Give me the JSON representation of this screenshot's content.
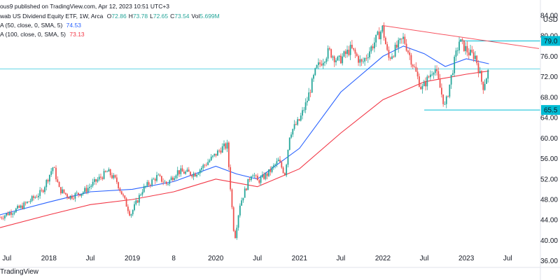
{
  "header": {
    "published": "ous9 published on TradingView.com, Apr 12, 2023 10:51 UTC+3",
    "symbol_line": "wab US Dividend Equity ETF, 1W, Arca",
    "ohlc": [
      {
        "k": "O",
        "v": "72.86"
      },
      {
        "k": "H",
        "v": "73.78"
      },
      {
        "k": "L",
        "v": "72.65"
      },
      {
        "k": "C",
        "v": "73.54"
      },
      {
        "k": "Vol",
        "v": "5.699M"
      }
    ],
    "ma50": {
      "label": "A (50, close, 0, SMA, 5)",
      "value": "74.53"
    },
    "ma100": {
      "label": "A (100, close, 0, SMA, 5)",
      "value": "73.13"
    }
  },
  "footer": {
    "brand": "TradingView"
  },
  "colors": {
    "up": "#26a69a",
    "down": "#ef5350",
    "ma50": "#2962ff",
    "ma100": "#f23645",
    "trend": "#f7525f",
    "level": "#00bcd4",
    "text": "#131722",
    "axis": "#b2b5be"
  },
  "chart_data": {
    "type": "candlestick",
    "y_axis": {
      "currency": "USD",
      "range": [
        35,
        87
      ],
      "ticks": [
        36.0,
        40.0,
        44.0,
        48.0,
        52.0,
        56.0,
        60.0,
        64.0,
        68.0,
        72.0,
        76.0,
        80.0,
        84.0
      ],
      "tick_labels": [
        "36.00",
        "40.00",
        "44.00",
        "48.00",
        "52.00",
        "56.00",
        "60.00",
        "64.00",
        "68.00",
        "72.00",
        "76.00",
        "80.00",
        "84.00"
      ]
    },
    "x_axis": {
      "range": [
        "2017-06-01",
        "2023-11-15"
      ],
      "ticks": [
        {
          "date": "2017-07-01",
          "label": "Jul"
        },
        {
          "date": "2018-01-01",
          "label": "2018"
        },
        {
          "date": "2018-07-01",
          "label": "Jul"
        },
        {
          "date": "2019-01-01",
          "label": "2019"
        },
        {
          "date": "2019-07-01",
          "label": "8"
        },
        {
          "date": "2020-01-01",
          "label": "2020"
        },
        {
          "date": "2020-07-01",
          "label": "Jul"
        },
        {
          "date": "2021-01-01",
          "label": "2021"
        },
        {
          "date": "2021-07-01",
          "label": "Jul"
        },
        {
          "date": "2022-01-01",
          "label": "2022"
        },
        {
          "date": "2022-07-01",
          "label": "Jul"
        },
        {
          "date": "2023-01-01",
          "label": "2023"
        },
        {
          "date": "2023-07-01",
          "label": "Jul"
        }
      ]
    },
    "price_path": [
      [
        "2017-06-01",
        44.5
      ],
      [
        "2017-09-01",
        46.5
      ],
      [
        "2017-12-01",
        49.5
      ],
      [
        "2018-01-20",
        54.5
      ],
      [
        "2018-02-15",
        50.0
      ],
      [
        "2018-04-01",
        48.5
      ],
      [
        "2018-06-01",
        49.5
      ],
      [
        "2018-09-15",
        53.5
      ],
      [
        "2018-10-25",
        51.5
      ],
      [
        "2018-12-24",
        45.0
      ],
      [
        "2019-02-15",
        50.0
      ],
      [
        "2019-04-20",
        52.5
      ],
      [
        "2019-06-01",
        51.0
      ],
      [
        "2019-07-15",
        53.5
      ],
      [
        "2019-10-01",
        53.0
      ],
      [
        "2019-12-25",
        56.5
      ],
      [
        "2020-01-25",
        58.0
      ],
      [
        "2020-02-20",
        58.5
      ],
      [
        "2020-03-23",
        40.0
      ],
      [
        "2020-04-15",
        47.0
      ],
      [
        "2020-06-08",
        53.5
      ],
      [
        "2020-07-01",
        51.5
      ],
      [
        "2020-08-15",
        53.0
      ],
      [
        "2020-10-01",
        55.5
      ],
      [
        "2020-10-30",
        53.0
      ],
      [
        "2020-11-20",
        61.0
      ],
      [
        "2021-01-01",
        63.5
      ],
      [
        "2021-02-01",
        67.0
      ],
      [
        "2021-03-15",
        73.5
      ],
      [
        "2021-05-10",
        77.0
      ],
      [
        "2021-06-20",
        75.0
      ],
      [
        "2021-08-15",
        77.5
      ],
      [
        "2021-10-01",
        74.5
      ],
      [
        "2021-11-15",
        78.0
      ],
      [
        "2021-12-31",
        81.5
      ],
      [
        "2022-01-25",
        75.5
      ],
      [
        "2022-04-01",
        79.5
      ],
      [
        "2022-05-20",
        73.5
      ],
      [
        "2022-06-20",
        69.5
      ],
      [
        "2022-08-15",
        74.0
      ],
      [
        "2022-09-30",
        66.0
      ],
      [
        "2022-11-05",
        74.0
      ],
      [
        "2022-12-01",
        79.0
      ],
      [
        "2023-01-15",
        76.5
      ],
      [
        "2023-02-10",
        76.0
      ],
      [
        "2023-03-15",
        70.0
      ],
      [
        "2023-04-10",
        73.5
      ]
    ],
    "series": [
      {
        "name": "A (50, close, 0, SMA, 5)",
        "last": 74.53,
        "points": [
          [
            "2017-06-01",
            45.0
          ],
          [
            "2018-01-01",
            47.5
          ],
          [
            "2018-07-01",
            49.5
          ],
          [
            "2019-01-01",
            50.0
          ],
          [
            "2019-07-01",
            51.5
          ],
          [
            "2020-01-01",
            54.5
          ],
          [
            "2020-04-01",
            53.0
          ],
          [
            "2020-07-01",
            52.0
          ],
          [
            "2021-01-01",
            58.0
          ],
          [
            "2021-07-01",
            69.0
          ],
          [
            "2022-01-01",
            76.0
          ],
          [
            "2022-04-01",
            78.0
          ],
          [
            "2022-07-01",
            76.5
          ],
          [
            "2022-10-01",
            74.0
          ],
          [
            "2023-01-01",
            75.5
          ],
          [
            "2023-04-10",
            74.53
          ]
        ]
      },
      {
        "name": "A (100, close, 0, SMA, 5)",
        "last": 73.13,
        "points": [
          [
            "2017-06-01",
            42.5
          ],
          [
            "2018-01-01",
            45.0
          ],
          [
            "2018-07-01",
            47.0
          ],
          [
            "2019-01-01",
            48.0
          ],
          [
            "2019-07-01",
            49.5
          ],
          [
            "2020-01-01",
            52.0
          ],
          [
            "2020-07-01",
            50.5
          ],
          [
            "2021-01-01",
            54.0
          ],
          [
            "2021-07-01",
            61.0
          ],
          [
            "2022-01-01",
            67.5
          ],
          [
            "2022-07-01",
            71.0
          ],
          [
            "2023-01-01",
            72.5
          ],
          [
            "2023-04-10",
            73.13
          ]
        ]
      }
    ],
    "annotations": [
      {
        "type": "trendline",
        "from": [
          "2021-12-31",
          82.0
        ],
        "to": [
          "2023-11-15",
          77.5
        ]
      },
      {
        "type": "horizontal_line",
        "value": 73.5
      },
      {
        "type": "horizontal_line",
        "value": 79.0,
        "from": "2022-12-01",
        "label": "79.0"
      },
      {
        "type": "horizontal_line",
        "value": 65.5,
        "from": "2022-07-01",
        "label": "65.5"
      }
    ],
    "grid": false,
    "legend": "top-left"
  }
}
